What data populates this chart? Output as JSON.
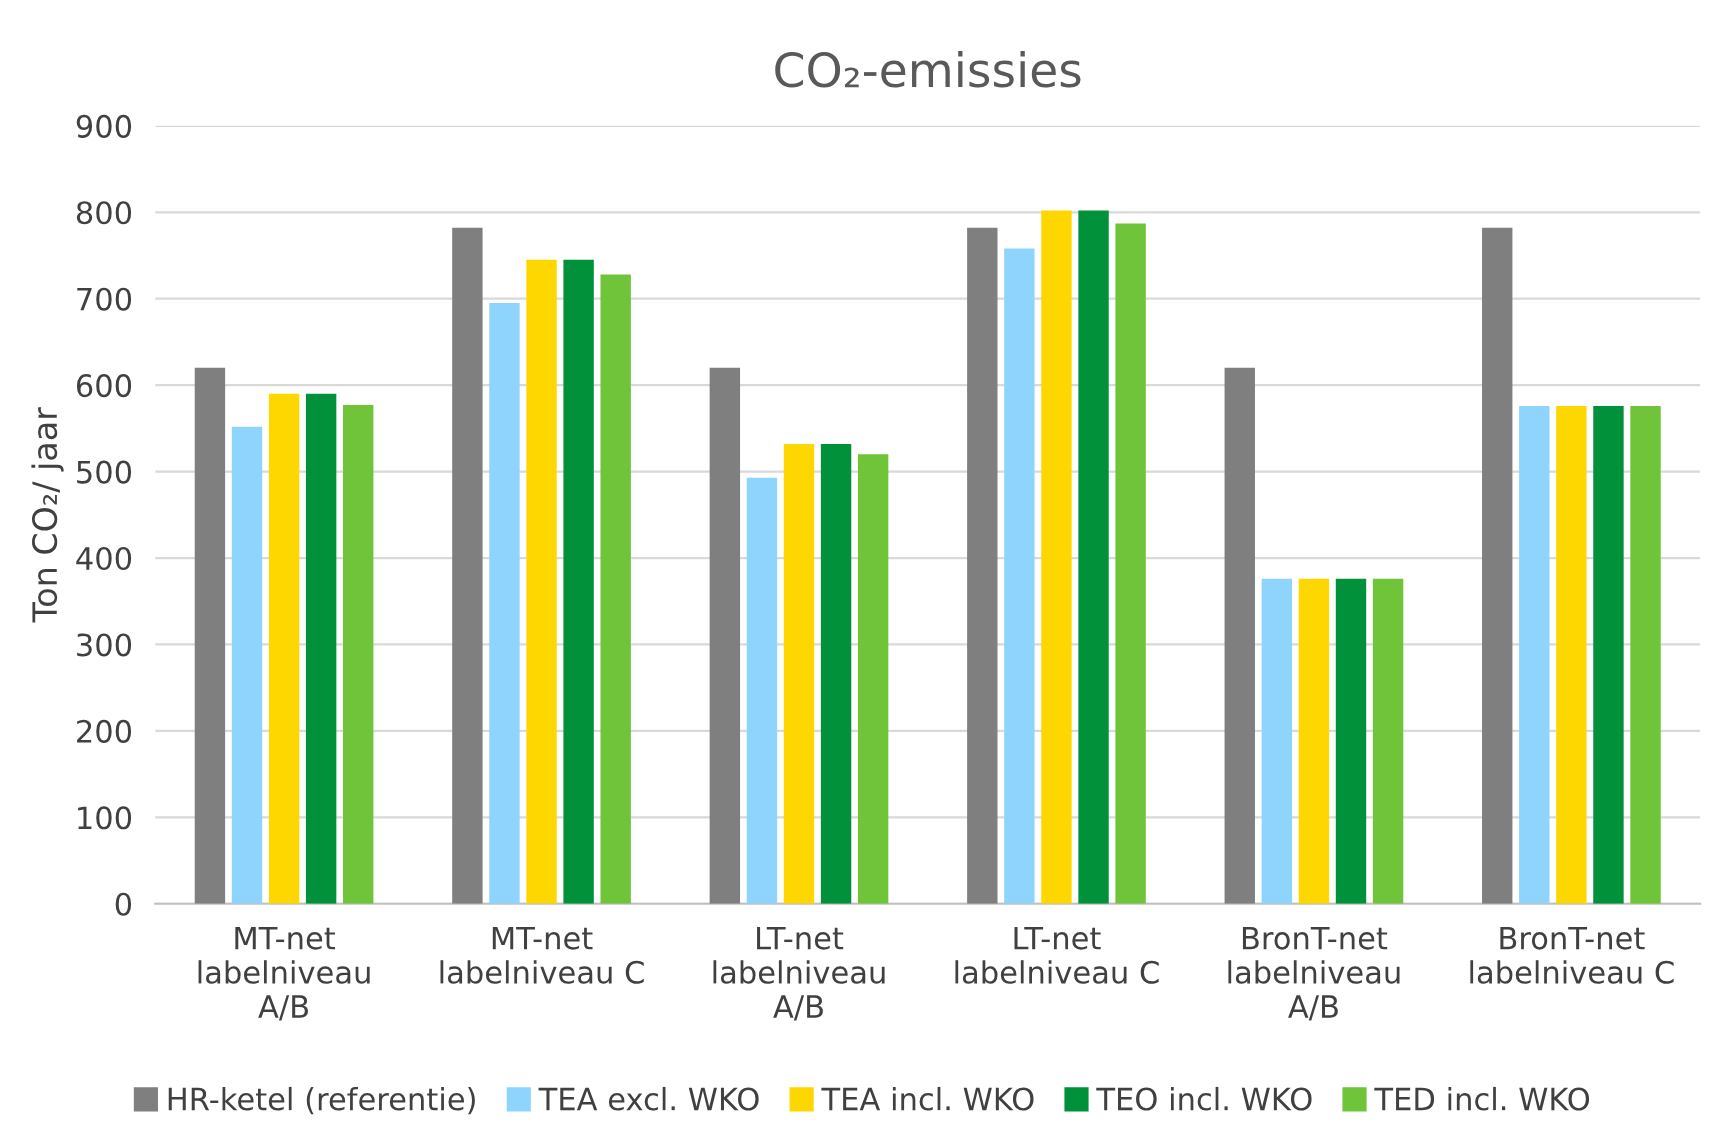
{
  "chart_data": {
    "type": "bar",
    "title": "CO₂-emissies",
    "ylabel": "Ton CO₂/ jaar",
    "categories": [
      "MT-net\nlabelniveau\nA/B",
      "MT-net\nlabelniveau C",
      "LT-net\nlabelniveau\nA/B",
      "LT-net\nlabelniveau C",
      "BronT-net\nlabelniveau\nA/B",
      "BronT-net\nlabelniveau C"
    ],
    "series": [
      {
        "name": "HR-ketel (referentie)",
        "color": "#7f7f7f",
        "values": [
          620,
          782,
          620,
          782,
          620,
          782
        ]
      },
      {
        "name": "TEA excl. WKO",
        "color": "#8fd4fd",
        "values": [
          552,
          695,
          493,
          758,
          376,
          576
        ]
      },
      {
        "name": "TEA incl. WKO",
        "color": "#ffd700",
        "values": [
          590,
          745,
          532,
          802,
          376,
          576
        ]
      },
      {
        "name": "TEO incl. WKO",
        "color": "#00913a",
        "values": [
          590,
          745,
          532,
          802,
          376,
          576
        ]
      },
      {
        "name": "TED incl. WKO",
        "color": "#70c43a",
        "values": [
          577,
          728,
          520,
          787,
          376,
          576
        ]
      }
    ],
    "ylim": [
      0,
      900
    ],
    "yticks": [
      0,
      100,
      200,
      300,
      400,
      500,
      600,
      700,
      800,
      900
    ],
    "grid": "y",
    "legend": "bottom"
  }
}
